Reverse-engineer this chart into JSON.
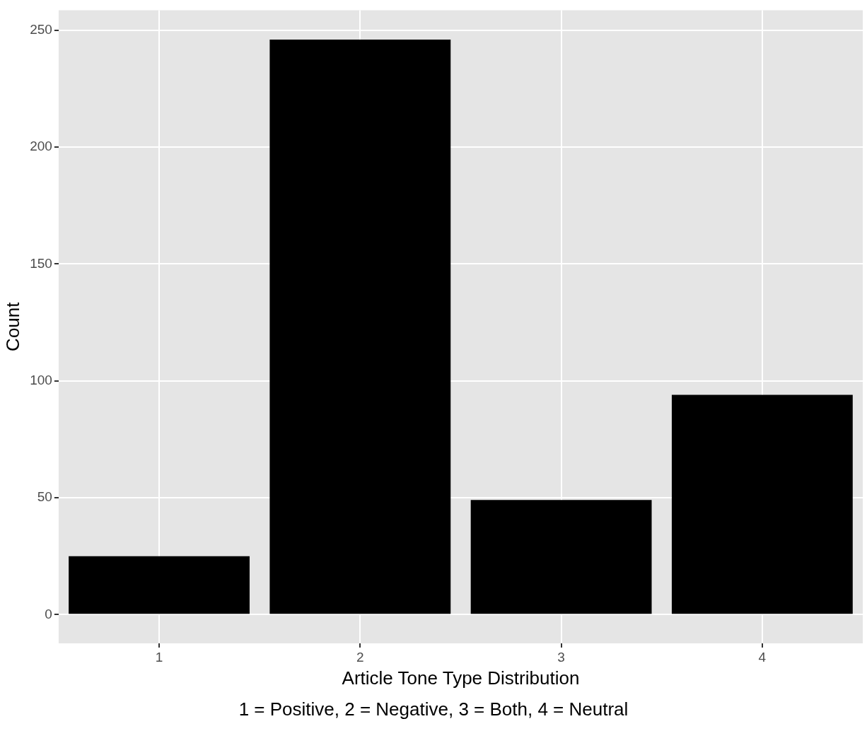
{
  "chart_data": {
    "type": "bar",
    "xlabel": "Article Tone Type Distribution",
    "ylabel": "Count",
    "categories": [
      "1",
      "2",
      "3",
      "4"
    ],
    "values": [
      25,
      246,
      49,
      94
    ],
    "color": "#000000",
    "ylim": [
      -12.3,
      258.6
    ],
    "yticks": [
      0,
      50,
      100,
      150,
      200,
      250
    ],
    "grid": true,
    "annotations": [
      "1 = Positive, 2 = Negative, 3 = Both, 4 = Neutral"
    ]
  }
}
